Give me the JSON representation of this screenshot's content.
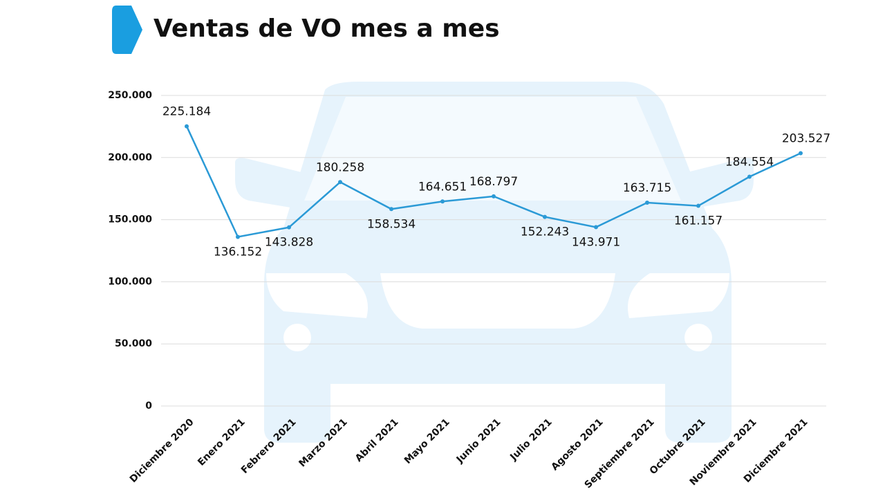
{
  "chart_data": {
    "type": "line",
    "title": "Ventas de VO mes a mes",
    "categories": [
      "Diciembre 2020",
      "Enero 2021",
      "Febrero 2021",
      "Marzo 2021",
      "Abril 2021",
      "Mayo 2021",
      "Junio 2021",
      "Julio 2021",
      "Agosto 2021",
      "Septiembre 2021",
      "Octubre 2021",
      "Noviembre 2021",
      "Diciembre 2021"
    ],
    "values": [
      225184,
      136152,
      143828,
      180258,
      158534,
      164651,
      168797,
      152243,
      143971,
      163715,
      161157,
      184554,
      203527
    ],
    "value_labels": [
      "225.184",
      "136.152",
      "143.828",
      "180.258",
      "158.534",
      "164.651",
      "168.797",
      "152.243",
      "143.971",
      "163.715",
      "161.157",
      "184.554",
      "203.527"
    ],
    "color": "#2b9ad6",
    "ylim": [
      0,
      250000
    ],
    "yticks": [
      0,
      {
        "value": 50000,
        "label": "50.000"
      },
      {
        "value": 100000,
        "label": "100.000"
      },
      {
        "value": 150000,
        "label": "150.000"
      },
      {
        "value": 200000,
        "label": "200.000"
      },
      {
        "value": 250000,
        "label": "250.000"
      }
    ],
    "grid": true
  }
}
